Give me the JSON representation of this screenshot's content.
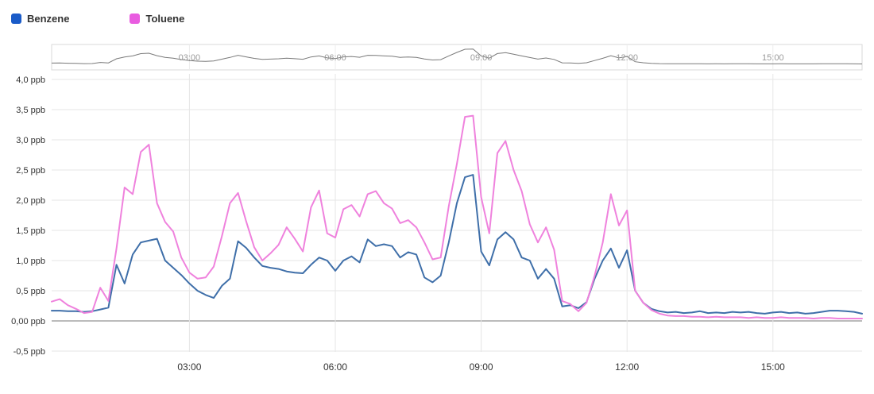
{
  "legend": {
    "items": [
      {
        "label": "Benzene",
        "color": "#1a5bc8",
        "line_color": "#3f6fa9"
      },
      {
        "label": "Toluene",
        "color": "#e95ce0",
        "line_color": "#ef82dd"
      }
    ]
  },
  "chart_data": {
    "type": "line",
    "title": "",
    "unit": "ppb",
    "x_axis_type": "time",
    "grid": true,
    "legend_position": "top-left",
    "xlim_minutes": [
      10,
      1010
    ],
    "ylim": [
      -0.52,
      4.1
    ],
    "x_ticks": [
      {
        "minutes": 180,
        "label": "03:00"
      },
      {
        "minutes": 360,
        "label": "06:00"
      },
      {
        "minutes": 540,
        "label": "09:00"
      },
      {
        "minutes": 720,
        "label": "12:00"
      },
      {
        "minutes": 900,
        "label": "15:00"
      }
    ],
    "y_ticks": [
      {
        "value": 4.0,
        "label": "4,0 ppb"
      },
      {
        "value": 3.5,
        "label": "3,5 ppb"
      },
      {
        "value": 3.0,
        "label": "3,0 ppb"
      },
      {
        "value": 2.5,
        "label": "2,5 ppb"
      },
      {
        "value": 2.0,
        "label": "2,0 ppb"
      },
      {
        "value": 1.5,
        "label": "1,5 ppb"
      },
      {
        "value": 1.0,
        "label": "1,0 ppb"
      },
      {
        "value": 0.5,
        "label": "0,5 ppb"
      },
      {
        "value": 0.0,
        "label": "0,00 ppb"
      },
      {
        "value": -0.5,
        "label": "-0,5 ppb"
      }
    ],
    "x_minutes": [
      10,
      20,
      30,
      40,
      50,
      60,
      70,
      80,
      90,
      100,
      110,
      120,
      130,
      140,
      150,
      160,
      170,
      180,
      190,
      200,
      210,
      220,
      230,
      240,
      250,
      260,
      270,
      280,
      290,
      300,
      310,
      320,
      330,
      340,
      350,
      360,
      370,
      380,
      390,
      400,
      410,
      420,
      430,
      440,
      450,
      460,
      470,
      480,
      490,
      500,
      510,
      520,
      530,
      540,
      550,
      560,
      570,
      580,
      590,
      600,
      610,
      620,
      630,
      640,
      650,
      660,
      670,
      680,
      690,
      700,
      710,
      720,
      730,
      740,
      750,
      760,
      770,
      780,
      790,
      800,
      810,
      820,
      830,
      840,
      850,
      860,
      870,
      880,
      890,
      900,
      910,
      920,
      930,
      940,
      950,
      960,
      970,
      980,
      990,
      1000,
      1010
    ],
    "series": [
      {
        "name": "Benzene",
        "line_color": "#3f6fa9",
        "values": [
          0.17,
          0.17,
          0.16,
          0.16,
          0.15,
          0.16,
          0.19,
          0.22,
          0.93,
          0.62,
          1.1,
          1.3,
          1.33,
          1.36,
          1.0,
          0.88,
          0.76,
          0.62,
          0.5,
          0.43,
          0.38,
          0.58,
          0.7,
          1.32,
          1.21,
          1.05,
          0.91,
          0.88,
          0.86,
          0.82,
          0.8,
          0.79,
          0.93,
          1.05,
          1.0,
          0.83,
          1.0,
          1.07,
          0.97,
          1.35,
          1.24,
          1.27,
          1.24,
          1.05,
          1.14,
          1.1,
          0.72,
          0.64,
          0.75,
          1.3,
          1.95,
          2.38,
          2.42,
          1.15,
          0.92,
          1.35,
          1.47,
          1.35,
          1.05,
          1.0,
          0.7,
          0.86,
          0.7,
          0.24,
          0.26,
          0.21,
          0.31,
          0.7,
          1.0,
          1.2,
          0.88,
          1.17,
          0.5,
          0.3,
          0.2,
          0.16,
          0.14,
          0.15,
          0.13,
          0.14,
          0.16,
          0.13,
          0.14,
          0.13,
          0.15,
          0.14,
          0.15,
          0.13,
          0.12,
          0.14,
          0.15,
          0.13,
          0.14,
          0.12,
          0.13,
          0.15,
          0.17,
          0.17,
          0.16,
          0.15,
          0.12
        ]
      },
      {
        "name": "Toluene",
        "line_color": "#ef82dd",
        "values": [
          0.32,
          0.36,
          0.26,
          0.2,
          0.13,
          0.15,
          0.55,
          0.33,
          1.2,
          2.21,
          2.1,
          2.8,
          2.92,
          1.95,
          1.64,
          1.48,
          1.05,
          0.8,
          0.7,
          0.72,
          0.9,
          1.4,
          1.95,
          2.12,
          1.65,
          1.22,
          1.0,
          1.12,
          1.26,
          1.55,
          1.36,
          1.15,
          1.88,
          2.16,
          1.45,
          1.38,
          1.85,
          1.92,
          1.73,
          2.1,
          2.15,
          1.95,
          1.86,
          1.62,
          1.67,
          1.55,
          1.3,
          1.02,
          1.05,
          1.9,
          2.6,
          3.38,
          3.4,
          2.05,
          1.45,
          2.78,
          2.98,
          2.5,
          2.15,
          1.6,
          1.3,
          1.55,
          1.18,
          0.33,
          0.28,
          0.16,
          0.3,
          0.75,
          1.3,
          2.1,
          1.58,
          1.83,
          0.5,
          0.3,
          0.18,
          0.12,
          0.09,
          0.08,
          0.08,
          0.07,
          0.07,
          0.06,
          0.07,
          0.06,
          0.06,
          0.06,
          0.05,
          0.06,
          0.05,
          0.05,
          0.06,
          0.05,
          0.05,
          0.05,
          0.04,
          0.05,
          0.05,
          0.04,
          0.04,
          0.04,
          0.04
        ]
      }
    ],
    "navigator": {
      "x_tick_labels": [
        "03:00",
        "06:00",
        "09:00",
        "12:00",
        "15:00"
      ],
      "line_color": "#7a7a7a"
    }
  }
}
